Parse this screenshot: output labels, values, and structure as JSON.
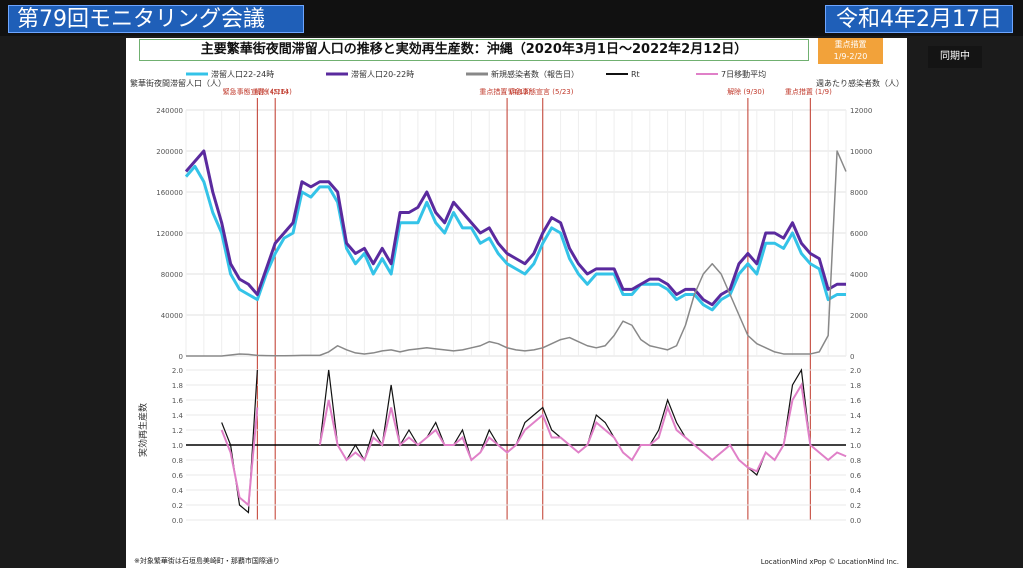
{
  "header": {
    "left_title": "第79回モニタリング会議",
    "right_date": "令和4年2月17日"
  },
  "side_badge": "同期中",
  "slide": {
    "title": "主要繁華街夜間滞留人口の推移と実効再生産数：沖縄（2020年3月1日～2022年2月12日）",
    "badge_lines": [
      "重点措置",
      "1/9-2/20"
    ],
    "source": "LocationMind xPop © LocationMind Inc.",
    "footnote": "※対象繁華街は石垣島美崎町・那覇市国際通り"
  },
  "chart_data": [
    {
      "type": "line",
      "ylabel": "繁華街夜間滞留人口（人）",
      "y2label": "週あたり感染者数（人）",
      "ylim": [
        0,
        240000
      ],
      "y2lim": [
        0,
        12000
      ],
      "yticks": [
        0,
        40000,
        80000,
        120000,
        160000,
        200000,
        240000
      ],
      "y2ticks": [
        0,
        2000,
        4000,
        6000,
        8000,
        10000,
        12000
      ],
      "grid": true,
      "legend_position": "top",
      "legend": [
        "滞留人口22-24時",
        "滞留人口20-22時",
        "新規感染者数（報告日）"
      ],
      "series": [
        {
          "name": "滞留人口22-24時",
          "color": "#34c3e8",
          "axis": "left",
          "values": [
            175000,
            185000,
            170000,
            140000,
            120000,
            80000,
            65000,
            60000,
            55000,
            80000,
            100000,
            115000,
            120000,
            160000,
            155000,
            165000,
            165000,
            150000,
            105000,
            90000,
            100000,
            80000,
            95000,
            80000,
            130000,
            130000,
            130000,
            150000,
            130000,
            120000,
            140000,
            125000,
            125000,
            110000,
            115000,
            100000,
            90000,
            85000,
            80000,
            90000,
            110000,
            125000,
            120000,
            95000,
            80000,
            70000,
            80000,
            80000,
            80000,
            60000,
            60000,
            70000,
            70000,
            70000,
            65000,
            55000,
            60000,
            60000,
            50000,
            45000,
            55000,
            60000,
            80000,
            90000,
            80000,
            110000,
            110000,
            105000,
            120000,
            100000,
            90000,
            85000,
            55000,
            60000,
            60000
          ]
        },
        {
          "name": "滞留人口20-22時",
          "color": "#5a2a9e",
          "axis": "left",
          "values": [
            180000,
            190000,
            200000,
            160000,
            130000,
            90000,
            75000,
            70000,
            60000,
            85000,
            110000,
            120000,
            130000,
            170000,
            165000,
            170000,
            170000,
            160000,
            110000,
            100000,
            105000,
            90000,
            105000,
            90000,
            140000,
            140000,
            145000,
            160000,
            140000,
            130000,
            150000,
            140000,
            130000,
            120000,
            125000,
            110000,
            100000,
            95000,
            90000,
            100000,
            120000,
            135000,
            130000,
            105000,
            90000,
            80000,
            85000,
            85000,
            85000,
            65000,
            65000,
            70000,
            75000,
            75000,
            70000,
            60000,
            65000,
            65000,
            55000,
            50000,
            60000,
            65000,
            90000,
            100000,
            90000,
            120000,
            120000,
            115000,
            130000,
            110000,
            100000,
            95000,
            65000,
            70000,
            70000
          ]
        },
        {
          "name": "新規感染者数（報告日）",
          "color": "#888888",
          "axis": "right",
          "values": [
            0,
            0,
            0,
            0,
            0,
            50,
            100,
            80,
            30,
            20,
            10,
            10,
            20,
            30,
            30,
            30,
            200,
            500,
            300,
            150,
            100,
            150,
            250,
            300,
            200,
            300,
            350,
            400,
            350,
            300,
            250,
            300,
            400,
            500,
            700,
            600,
            400,
            300,
            250,
            300,
            400,
            600,
            800,
            900,
            700,
            500,
            400,
            500,
            1000,
            1700,
            1500,
            800,
            500,
            400,
            300,
            500,
            1500,
            3000,
            4000,
            4500,
            4000,
            3000,
            2000,
            1000,
            600,
            400,
            200,
            100,
            100,
            100,
            100,
            200,
            1000,
            10000,
            9000
          ]
        }
      ],
      "annotations": [
        {
          "label": "緊急事態宣言 (4/16)",
          "color": "#c0392b"
        },
        {
          "label": "解除 (5/14)",
          "color": "#c0392b"
        },
        {
          "label": "重点措置 (4/12)",
          "color": "#c0392b"
        },
        {
          "label": "緊急事態宣言 (5/23)",
          "color": "#c0392b"
        },
        {
          "label": "解除 (9/30)",
          "color": "#c0392b"
        },
        {
          "label": "重点措置 (1/9)",
          "color": "#c0392b"
        }
      ]
    },
    {
      "type": "line",
      "ylabel": "実効再生産数",
      "ylim": [
        0,
        2
      ],
      "yticks": [
        0,
        0.2,
        0.4,
        0.6,
        0.8,
        1.0,
        1.2,
        1.4,
        1.6,
        1.8,
        2.0
      ],
      "reference_line": 1.0,
      "legend": [
        "Rt",
        "7日移動平均"
      ],
      "series": [
        {
          "name": "Rt",
          "color": "#111111",
          "values": [
            null,
            null,
            null,
            null,
            1.3,
            1.0,
            0.2,
            0.1,
            2.0,
            null,
            null,
            null,
            null,
            null,
            null,
            1.0,
            2.0,
            1.0,
            0.8,
            1.0,
            0.8,
            1.2,
            1.0,
            1.8,
            1.0,
            1.2,
            1.0,
            1.1,
            1.3,
            1.0,
            1.0,
            1.2,
            0.8,
            0.9,
            1.2,
            1.0,
            0.9,
            1.0,
            1.3,
            1.4,
            1.5,
            1.2,
            1.1,
            1.0,
            0.9,
            1.0,
            1.4,
            1.3,
            1.1,
            0.9,
            0.8,
            1.0,
            1.0,
            1.2,
            1.6,
            1.3,
            1.1,
            1.0,
            0.9,
            0.8,
            0.9,
            1.0,
            0.8,
            0.7,
            0.6,
            0.9,
            0.8,
            1.0,
            1.8,
            2.0,
            1.0,
            0.9,
            0.8,
            0.9,
            0.85
          ]
        },
        {
          "name": "7日移動平均",
          "color": "#e080c8",
          "values": [
            null,
            null,
            null,
            null,
            1.2,
            0.9,
            0.3,
            0.2,
            1.5,
            null,
            null,
            null,
            null,
            null,
            null,
            1.0,
            1.6,
            1.0,
            0.8,
            0.9,
            0.8,
            1.1,
            1.0,
            1.5,
            1.0,
            1.1,
            1.0,
            1.1,
            1.2,
            1.0,
            1.0,
            1.1,
            0.8,
            0.9,
            1.1,
            1.0,
            0.9,
            1.0,
            1.2,
            1.3,
            1.4,
            1.1,
            1.1,
            1.0,
            0.9,
            1.0,
            1.3,
            1.2,
            1.1,
            0.9,
            0.8,
            1.0,
            1.0,
            1.1,
            1.5,
            1.2,
            1.1,
            1.0,
            0.9,
            0.8,
            0.9,
            1.0,
            0.8,
            0.7,
            0.65,
            0.9,
            0.8,
            1.0,
            1.6,
            1.8,
            1.0,
            0.9,
            0.8,
            0.9,
            0.85
          ]
        }
      ]
    }
  ]
}
